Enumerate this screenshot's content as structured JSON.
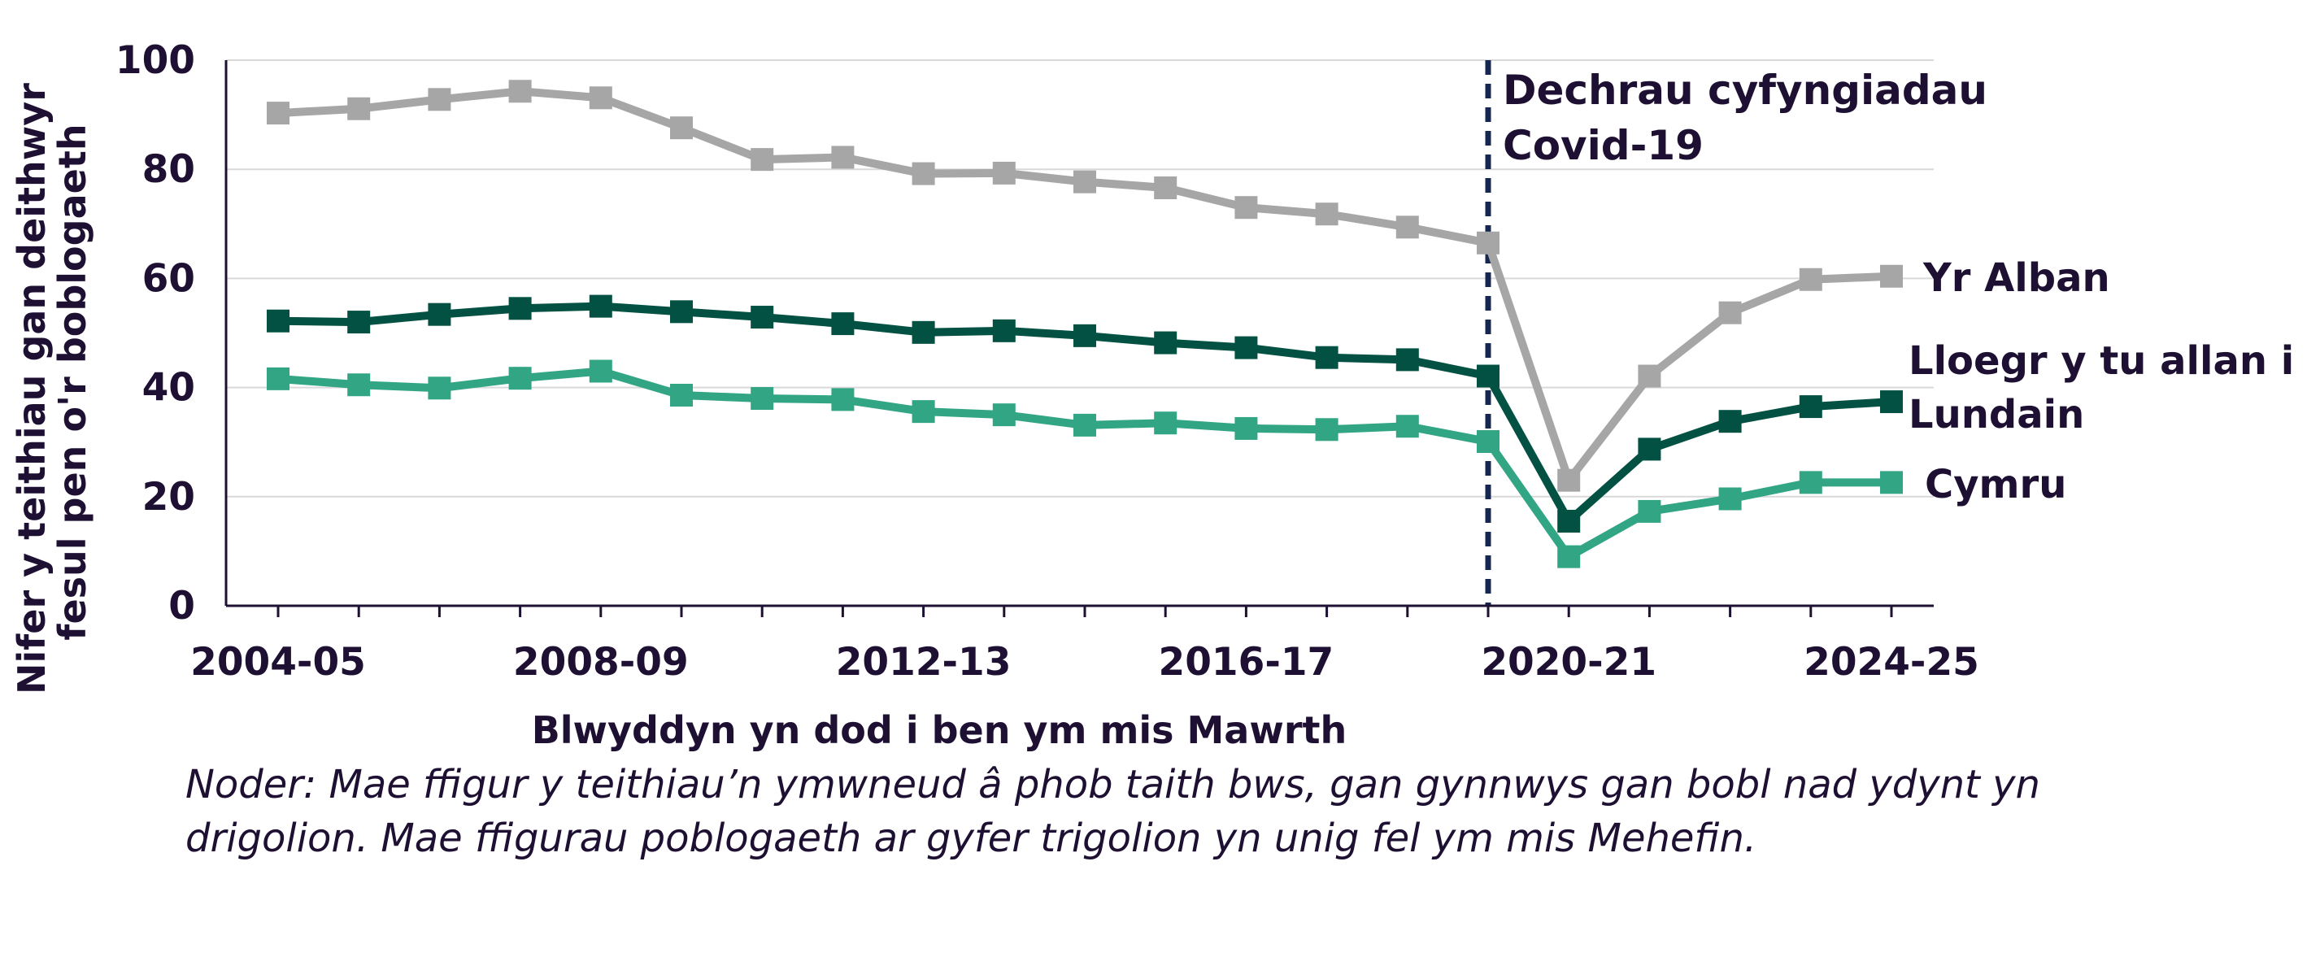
{
  "chart_data": {
    "type": "line",
    "x": [
      "2004-05",
      "2005-06",
      "2006-07",
      "2007-08",
      "2008-09",
      "2009-10",
      "2010-11",
      "2011-12",
      "2012-13",
      "2013-14",
      "2014-15",
      "2015-16",
      "2016-17",
      "2017-18",
      "2018-19",
      "2019-20",
      "2020-21",
      "2021-22",
      "2022-23",
      "2023-24",
      "2024-25"
    ],
    "x_tick_labels": [
      "2004-05",
      "2008-09",
      "2012-13",
      "2016-17",
      "2020-21",
      "2024-25"
    ],
    "xlabel": "Blwyddyn yn dod i ben ym mis Mawrth",
    "ylabel_lines": [
      "Nifer y teithiau gan deithwyr",
      "fesul pen o'r boblogaeth"
    ],
    "ylim": [
      0,
      100
    ],
    "yticks": [
      0,
      20,
      40,
      60,
      80,
      100
    ],
    "grid": true,
    "series": [
      {
        "name": "Yr Alban",
        "label_lines": [
          "Yr Alban"
        ],
        "color": "#a6a6a6",
        "values": [
          90.3,
          91.1,
          92.8,
          94.3,
          93.1,
          87.6,
          81.8,
          82.2,
          79.2,
          79.3,
          77.7,
          76.6,
          73.0,
          71.8,
          69.4,
          66.5,
          23.0,
          42.1,
          53.7,
          59.8,
          60.4
        ]
      },
      {
        "name": "Lloegr y tu allan i Lundain",
        "label_lines": [
          "Lloegr y tu allan i",
          "Lundain"
        ],
        "color": "#035142",
        "values": [
          52.2,
          52.0,
          53.4,
          54.5,
          54.9,
          53.9,
          52.9,
          51.7,
          50.1,
          50.4,
          49.5,
          48.2,
          47.3,
          45.5,
          45.1,
          42.1,
          15.5,
          28.7,
          33.8,
          36.5,
          37.4
        ]
      },
      {
        "name": "Cymru",
        "label_lines": [
          "Cymru"
        ],
        "color": "#32a585",
        "values": [
          41.6,
          40.5,
          39.9,
          41.7,
          43.0,
          38.6,
          38.0,
          37.8,
          35.6,
          35.0,
          33.1,
          33.5,
          32.5,
          32.3,
          32.9,
          30.1,
          9.0,
          17.3,
          19.6,
          22.6,
          22.6
        ]
      }
    ],
    "annotation": {
      "text_lines": [
        "Dechrau cyfyngiadau",
        "Covid-19"
      ],
      "at_x": "2019-20",
      "line_color": "#16274f"
    }
  },
  "note": "Noder: Mae ffigur y teithiau’n ymwneud â phob taith bws, gan gynnwys gan bobl nad ydynt yn drigolion. Mae ffigurau poblogaeth ar gyfer trigolion yn unig fel ym mis Mehefin."
}
